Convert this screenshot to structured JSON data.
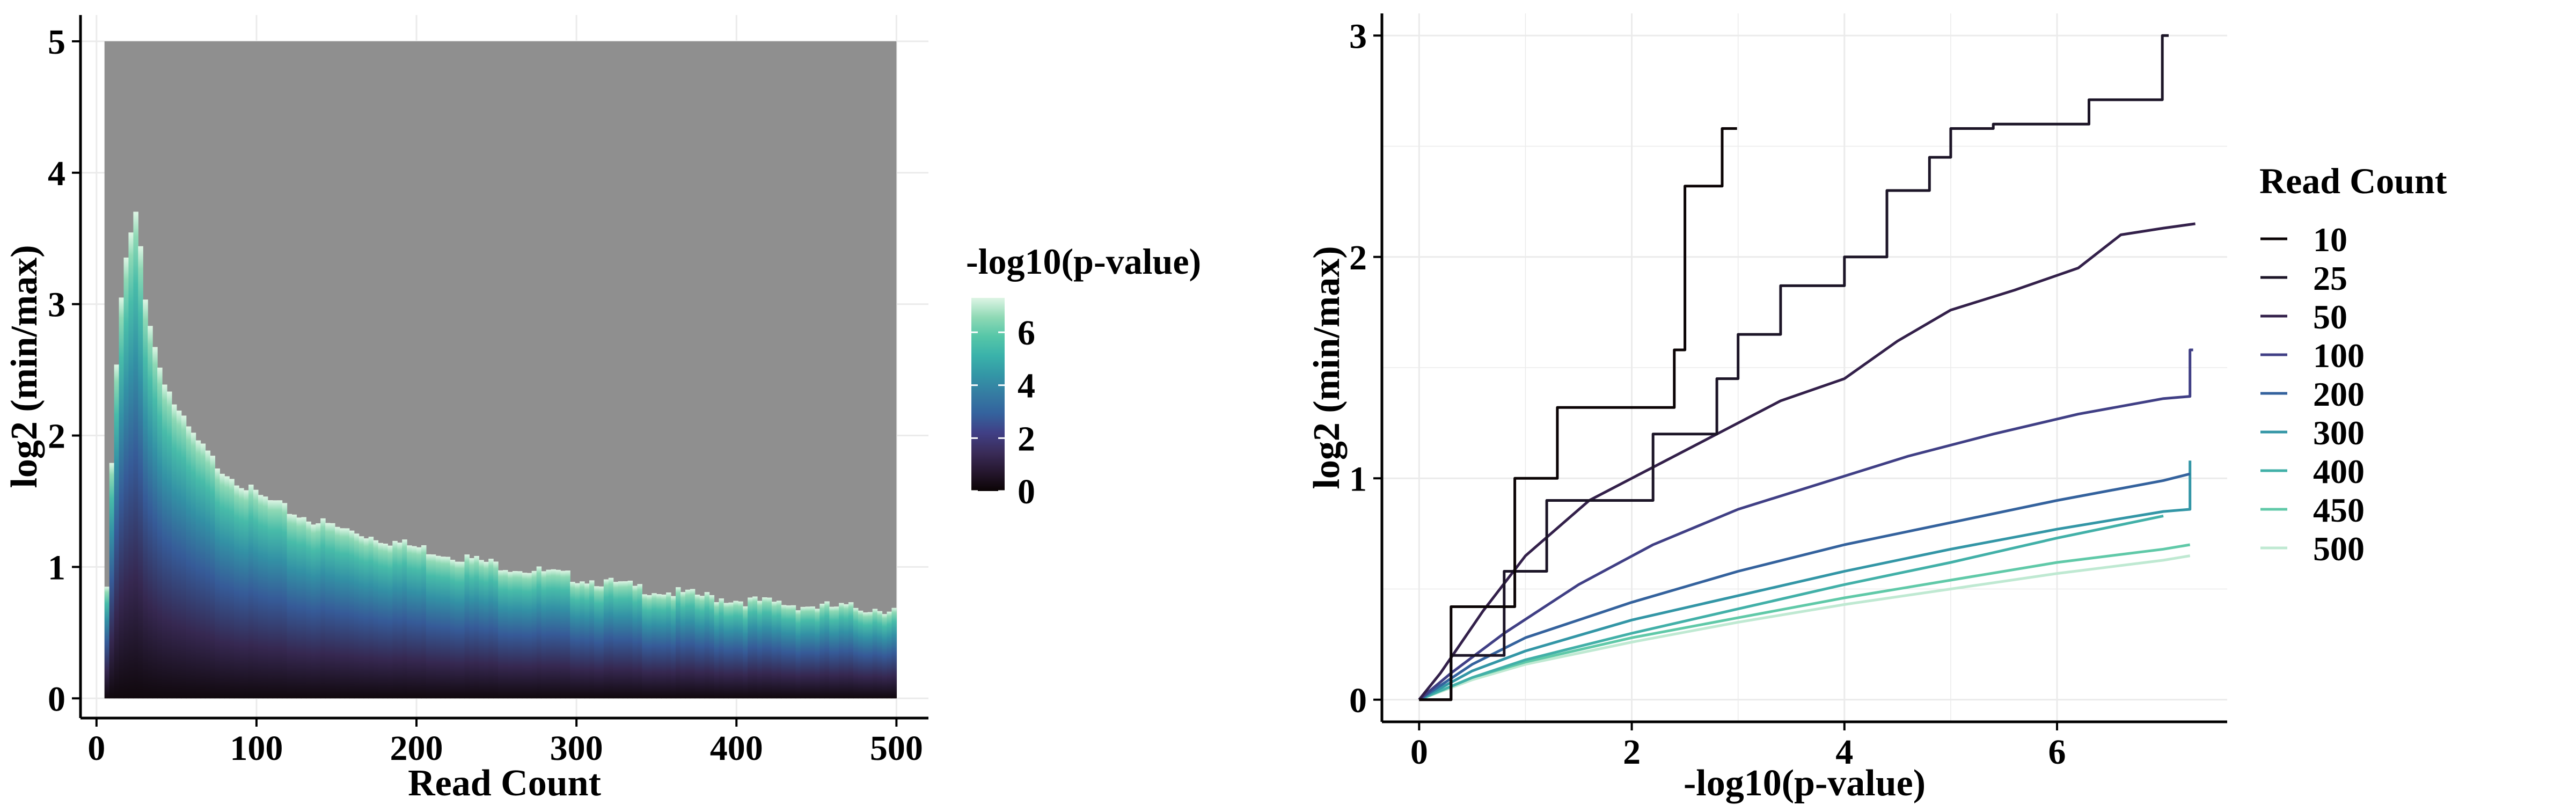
{
  "colors": {
    "background": "#ffffff",
    "na_fill": "#8f8f8f",
    "gridline": "#ebebeb",
    "axis": "#000000",
    "mako_palette": [
      "#0b0405",
      "#26172f",
      "#3a2c59",
      "#403f85",
      "#34629d",
      "#357ba2",
      "#3396a6",
      "#3ab2aa",
      "#56c6a8",
      "#8fd9b5",
      "#def5e5"
    ]
  },
  "chart_data": [
    {
      "type": "heatmap",
      "x_label": "Read Count",
      "y_label": "log2 (min/max)",
      "x_ticks": [
        0,
        100,
        200,
        300,
        400,
        500
      ],
      "y_ticks": [
        0,
        1,
        2,
        3,
        4,
        5
      ],
      "xlim": [
        -10,
        520
      ],
      "ylim": [
        -0.15,
        5.2
      ],
      "x_range": [
        5,
        500
      ],
      "y_range": [
        0,
        5
      ],
      "grid": true,
      "colorbar": {
        "title": "-log10(p-value)",
        "ticks": [
          0,
          2,
          4,
          6
        ],
        "range": [
          0,
          7.3
        ]
      },
      "boundary": {
        "description": "upper edge of colored (non-NA) region; cells above are gray (NA)",
        "read_count": [
          5,
          8,
          10,
          12,
          14,
          16,
          18,
          20,
          22,
          24,
          25,
          27,
          30,
          35,
          40,
          50,
          60,
          75,
          100,
          125,
          150,
          200,
          250,
          300,
          350,
          400,
          450,
          500
        ],
        "log2_ratio": [
          0.4,
          1.3,
          1.9,
          2.45,
          2.8,
          3.1,
          3.3,
          3.45,
          3.55,
          3.65,
          3.7,
          3.5,
          3.1,
          2.75,
          2.5,
          2.2,
          2.0,
          1.78,
          1.55,
          1.4,
          1.3,
          1.15,
          1.02,
          0.92,
          0.82,
          0.75,
          0.7,
          0.68
        ]
      }
    },
    {
      "type": "line",
      "x_label": "-log10(p-value)",
      "y_label": "log2 (min/max)",
      "x_ticks": [
        0,
        2,
        4,
        6
      ],
      "y_ticks": [
        0,
        1,
        2,
        3
      ],
      "xlim": [
        -0.35,
        7.6
      ],
      "ylim": [
        -0.1,
        3.1
      ],
      "grid": true,
      "legend": {
        "title": "Read Count",
        "position": "right"
      },
      "series": [
        {
          "name": "10",
          "color": "#0b0405",
          "step": true,
          "x": [
            0,
            0.3,
            0.3,
            0.9,
            0.9,
            1.3,
            1.3,
            2.4,
            2.4,
            2.5,
            2.5,
            2.85,
            2.85,
            2.99
          ],
          "y": [
            0,
            0,
            0.42,
            0.42,
            1.0,
            1.0,
            1.32,
            1.32,
            1.58,
            1.58,
            2.32,
            2.32,
            2.58,
            2.58
          ]
        },
        {
          "name": "25",
          "color": "#1c1527",
          "step": true,
          "x": [
            0,
            0.3,
            0.3,
            0.8,
            0.8,
            1.2,
            1.2,
            2.2,
            2.2,
            2.8,
            2.8,
            3.0,
            3.0,
            3.4,
            3.4,
            4.0,
            4.0,
            4.4,
            4.4,
            4.8,
            4.8,
            5.0,
            5.0,
            5.4,
            5.4,
            6.3,
            6.3,
            6.99,
            6.99,
            7.05
          ],
          "y": [
            0,
            0,
            0.2,
            0.2,
            0.58,
            0.58,
            0.9,
            0.9,
            1.2,
            1.2,
            1.45,
            1.45,
            1.65,
            1.65,
            1.87,
            1.87,
            2.0,
            2.0,
            2.3,
            2.3,
            2.45,
            2.45,
            2.58,
            2.58,
            2.6,
            2.6,
            2.71,
            2.71,
            3.0,
            3.0
          ]
        },
        {
          "name": "50",
          "color": "#33204a",
          "step": true,
          "x": [
            0,
            0.2,
            0.6,
            1.0,
            1.6,
            2.2,
            2.8,
            3.4,
            4.0,
            4.5,
            5.0,
            5.6,
            6.2,
            6.6,
            7.0,
            7.3
          ],
          "y": [
            0,
            0.12,
            0.4,
            0.65,
            0.9,
            1.05,
            1.2,
            1.35,
            1.45,
            1.62,
            1.76,
            1.85,
            1.95,
            2.1,
            2.13,
            2.15
          ]
        },
        {
          "name": "100",
          "color": "#403f85",
          "step": true,
          "x": [
            0,
            0.3,
            0.8,
            1.5,
            2.2,
            3.0,
            3.8,
            4.6,
            5.4,
            6.2,
            7.0,
            7.25,
            7.25,
            7.28
          ],
          "y": [
            0,
            0.12,
            0.3,
            0.52,
            0.7,
            0.86,
            0.98,
            1.1,
            1.2,
            1.29,
            1.36,
            1.37,
            1.58,
            1.58
          ]
        },
        {
          "name": "200",
          "color": "#34629d",
          "step": false,
          "x": [
            0,
            0.5,
            1.0,
            2.0,
            3.0,
            4.0,
            5.0,
            6.0,
            7.0,
            7.25
          ],
          "y": [
            0,
            0.16,
            0.28,
            0.44,
            0.58,
            0.7,
            0.8,
            0.9,
            0.99,
            1.02
          ]
        },
        {
          "name": "300",
          "color": "#3396a6",
          "step": false,
          "x": [
            0,
            0.5,
            1.0,
            2.0,
            3.0,
            4.0,
            5.0,
            6.0,
            7.0,
            7.25,
            7.25
          ],
          "y": [
            0,
            0.13,
            0.22,
            0.36,
            0.47,
            0.58,
            0.68,
            0.77,
            0.85,
            0.86,
            1.08
          ]
        },
        {
          "name": "400",
          "color": "#42b0a8",
          "step": false,
          "x": [
            0,
            0.5,
            1.0,
            2.0,
            3.0,
            4.0,
            5.0,
            6.0,
            7.0
          ],
          "y": [
            0,
            0.1,
            0.18,
            0.3,
            0.41,
            0.52,
            0.62,
            0.73,
            0.83
          ]
        },
        {
          "name": "450",
          "color": "#60c9a8",
          "step": false,
          "x": [
            0,
            0.5,
            1.0,
            2.0,
            3.0,
            4.0,
            5.0,
            6.0,
            7.0,
            7.25
          ],
          "y": [
            0,
            0.1,
            0.17,
            0.28,
            0.37,
            0.46,
            0.54,
            0.62,
            0.68,
            0.7
          ]
        },
        {
          "name": "500",
          "color": "#bfe9d2",
          "step": false,
          "x": [
            0,
            0.5,
            1.0,
            2.0,
            3.0,
            4.0,
            5.0,
            6.0,
            7.0,
            7.25
          ],
          "y": [
            0,
            0.09,
            0.16,
            0.26,
            0.35,
            0.43,
            0.5,
            0.57,
            0.63,
            0.65
          ]
        }
      ]
    }
  ]
}
